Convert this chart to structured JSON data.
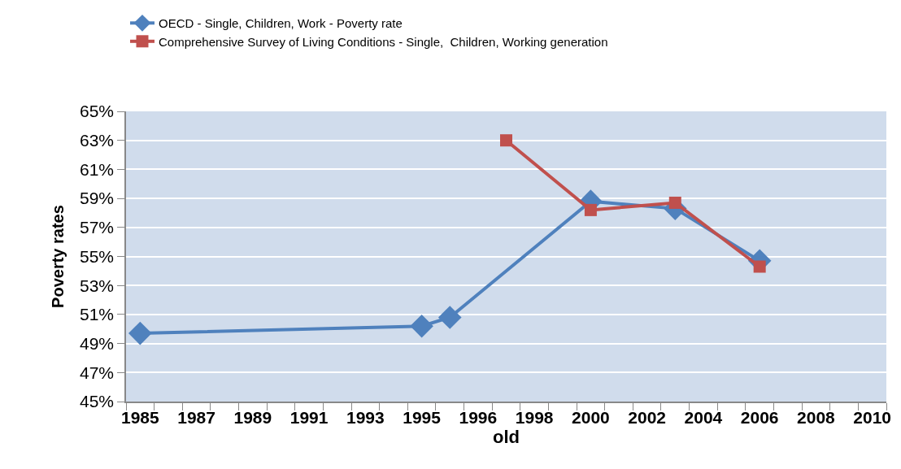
{
  "chart_data": {
    "type": "line",
    "xlabel": "old",
    "ylabel": "Poverty rates",
    "categories": [
      "1985",
      null,
      "1987",
      null,
      "1989",
      null,
      "1991",
      null,
      "1993",
      null,
      "1995",
      null,
      "1996",
      null,
      "1998",
      null,
      "2000",
      null,
      "2002",
      null,
      "2004",
      null,
      "2006",
      null,
      "2008",
      null,
      "2010"
    ],
    "series": [
      {
        "name": "OECD - Single, Children, Work - Poverty rate",
        "color": "#4f81bd",
        "marker": "diamond",
        "values": [
          49.7,
          null,
          null,
          null,
          null,
          null,
          null,
          null,
          null,
          null,
          50.2,
          50.8,
          null,
          null,
          null,
          null,
          58.8,
          null,
          null,
          58.3,
          null,
          null,
          54.7,
          null,
          null,
          null,
          null
        ]
      },
      {
        "name": "Comprehensive Survey of Living Conditions - Single,  Children, Working generation",
        "color": "#c0504d",
        "marker": "square",
        "values": [
          null,
          null,
          null,
          null,
          null,
          null,
          null,
          null,
          null,
          null,
          null,
          null,
          null,
          63.0,
          null,
          null,
          58.2,
          null,
          null,
          58.7,
          null,
          null,
          54.3,
          null,
          null,
          null,
          null
        ]
      }
    ],
    "ylim": [
      45,
      65
    ],
    "yticks": [
      {
        "value": 45,
        "label": "45%"
      },
      {
        "value": 47,
        "label": "47%"
      },
      {
        "value": 49,
        "label": "49%"
      },
      {
        "value": 51,
        "label": "51%"
      },
      {
        "value": 53,
        "label": "53%"
      },
      {
        "value": 55,
        "label": "55%"
      },
      {
        "value": 57,
        "label": "57%"
      },
      {
        "value": 59,
        "label": "59%"
      },
      {
        "value": 61,
        "label": "61%"
      },
      {
        "value": 63,
        "label": "63%"
      },
      {
        "value": 65,
        "label": "65%"
      }
    ],
    "grid": "y",
    "legend": "top left",
    "line_style": "solid"
  }
}
